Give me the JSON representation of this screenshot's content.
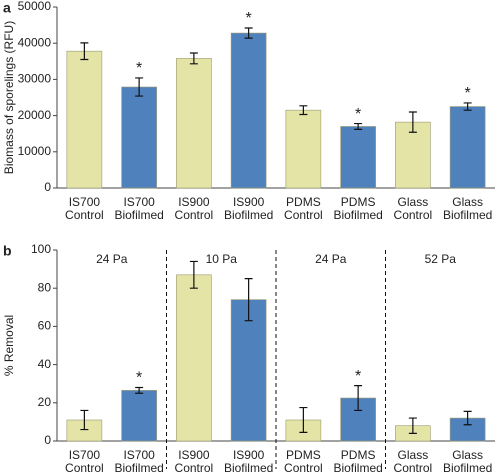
{
  "chart_data": [
    {
      "type": "bar",
      "panel_label": "a",
      "ylabel": "Biomass of sporelings (RFU)",
      "categories": [
        [
          "IS700",
          "Control"
        ],
        [
          "IS700",
          "Biofilmed"
        ],
        [
          "IS900",
          "Control"
        ],
        [
          "IS900",
          "Biofilmed"
        ],
        [
          "PDMS",
          "Control"
        ],
        [
          "PDMS",
          "Biofilmed"
        ],
        [
          "Glass",
          "Control"
        ],
        [
          "Glass",
          "Biofilmed"
        ]
      ],
      "values": [
        37800,
        27900,
        35800,
        42800,
        21500,
        17000,
        18200,
        22500
      ],
      "errors": [
        2300,
        2500,
        1500,
        1400,
        1200,
        800,
        2800,
        1000
      ],
      "value_annotations": [
        null,
        "*",
        null,
        "*",
        null,
        "*",
        null,
        "*"
      ],
      "colors": [
        "#e4e4a6",
        "#4f81bd",
        "#e4e4a6",
        "#4f81bd",
        "#e4e4a6",
        "#4f81bd",
        "#e4e4a6",
        "#4f81bd"
      ],
      "ylim": [
        0,
        50000
      ],
      "yticks": [
        0,
        10000,
        20000,
        30000,
        40000,
        50000
      ]
    },
    {
      "type": "bar",
      "panel_label": "b",
      "ylabel": "% Removal",
      "categories": [
        [
          "IS700",
          "Control"
        ],
        [
          "IS700",
          "Biofilmed"
        ],
        [
          "IS900",
          "Control"
        ],
        [
          "IS900",
          "Biofilmed"
        ],
        [
          "PDMS",
          "Control"
        ],
        [
          "PDMS",
          "Biofilmed"
        ],
        [
          "Glass",
          "Control"
        ],
        [
          "Glass",
          "Biofilmed"
        ]
      ],
      "values": [
        11,
        26.5,
        87,
        74,
        11,
        22.5,
        8,
        12
      ],
      "errors": [
        5,
        1.5,
        7,
        11,
        6.5,
        6.5,
        4,
        3.5
      ],
      "value_annotations": [
        null,
        "*",
        null,
        null,
        null,
        "*",
        null,
        null
      ],
      "colors": [
        "#e4e4a6",
        "#4f81bd",
        "#e4e4a6",
        "#4f81bd",
        "#e4e4a6",
        "#4f81bd",
        "#e4e4a6",
        "#4f81bd"
      ],
      "groups": [
        "24 Pa",
        "10 Pa",
        "24 Pa",
        "52 Pa"
      ],
      "ylim": [
        0,
        100
      ],
      "yticks": [
        0,
        20,
        40,
        60,
        80,
        100
      ]
    }
  ]
}
